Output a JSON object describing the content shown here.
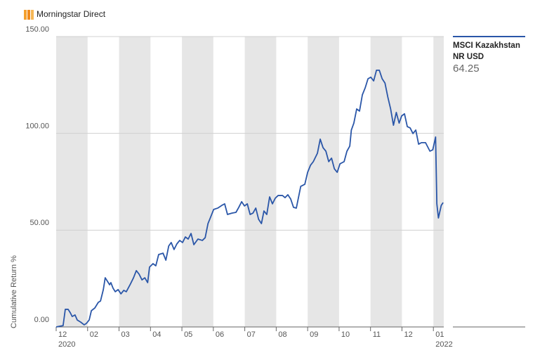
{
  "header": {
    "brand": "Morningstar Direct"
  },
  "chart_data": {
    "type": "line",
    "ylabel": "Cumulative Return %",
    "xlim": [
      0,
      12.33
    ],
    "xticks": [
      {
        "value": 0,
        "label": "12"
      },
      {
        "value": 1,
        "label": "02"
      },
      {
        "value": 2,
        "label": "03"
      },
      {
        "value": 3,
        "label": "04"
      },
      {
        "value": 4,
        "label": "05"
      },
      {
        "value": 5,
        "label": "06"
      },
      {
        "value": 6,
        "label": "07"
      },
      {
        "value": 7,
        "label": "08"
      },
      {
        "value": 8,
        "label": "09"
      },
      {
        "value": 9,
        "label": "10"
      },
      {
        "value": 10,
        "label": "11"
      },
      {
        "value": 11,
        "label": "12"
      },
      {
        "value": 12,
        "label": "01"
      }
    ],
    "year_labels": [
      {
        "value": 0,
        "label": "2020"
      },
      {
        "value": 12,
        "label": "2022"
      }
    ],
    "ylim": [
      0,
      150
    ],
    "yticks": [
      {
        "value": 0,
        "label": "0.00"
      },
      {
        "value": 50,
        "label": "50.00"
      },
      {
        "value": 100,
        "label": "100.00"
      },
      {
        "value": 150,
        "label": "150.00"
      }
    ],
    "grid": true,
    "band_color": "#e6e6e6",
    "series": [
      {
        "name": "MSCI Kazakhstan NR USD",
        "color": "#2a56a8",
        "x": [
          0,
          0.22,
          0.29,
          0.38,
          0.45,
          0.51,
          0.6,
          0.67,
          0.78,
          0.89,
          0.96,
          1.05,
          1.12,
          1.23,
          1.34,
          1.41,
          1.5,
          1.56,
          1.63,
          1.7,
          1.74,
          1.81,
          1.88,
          1.97,
          2.06,
          2.15,
          2.23,
          2.35,
          2.46,
          2.55,
          2.64,
          2.73,
          2.82,
          2.91,
          2.97,
          3.08,
          3.17,
          3.26,
          3.4,
          3.49,
          3.58,
          3.66,
          3.75,
          3.84,
          3.93,
          4.02,
          4.11,
          4.2,
          4.29,
          4.38,
          4.51,
          4.65,
          4.74,
          4.83,
          4.92,
          5.01,
          5.14,
          5.27,
          5.36,
          5.45,
          5.59,
          5.72,
          5.81,
          5.9,
          5.99,
          6.08,
          6.17,
          6.26,
          6.35,
          6.44,
          6.53,
          6.61,
          6.7,
          6.79,
          6.88,
          6.97,
          7.06,
          7.2,
          7.28,
          7.37,
          7.46,
          7.55,
          7.64,
          7.78,
          7.91,
          8.0,
          8.09,
          8.18,
          8.31,
          8.4,
          8.49,
          8.58,
          8.67,
          8.76,
          8.85,
          8.94,
          9.03,
          9.16,
          9.25,
          9.34,
          9.39,
          9.47,
          9.56,
          9.65,
          9.74,
          9.83,
          9.92,
          10.01,
          10.1,
          10.19,
          10.28,
          10.37,
          10.46,
          10.55,
          10.64,
          10.73,
          10.82,
          10.91,
          10.99,
          11.08,
          11.17,
          11.26,
          11.35,
          11.44,
          11.53,
          11.62,
          11.75,
          11.89,
          11.98,
          12.07,
          12.11,
          12.16,
          12.25,
          12.31
        ],
        "values": [
          0,
          0.7,
          9.1,
          9.1,
          7.3,
          5.4,
          6.2,
          3.6,
          2.5,
          1.1,
          1.8,
          3.6,
          8.4,
          9.8,
          12.7,
          13.4,
          19.3,
          25.4,
          23.6,
          21.8,
          22.9,
          20.0,
          18.2,
          19.3,
          17.1,
          18.9,
          18.2,
          21.8,
          25.4,
          29.1,
          27.2,
          24.3,
          25.4,
          22.9,
          30.9,
          32.7,
          31.6,
          37.4,
          38.1,
          34.5,
          41.8,
          43.6,
          40.0,
          42.9,
          44.7,
          43.6,
          46.5,
          45.4,
          48.3,
          42.5,
          45.4,
          44.7,
          46.1,
          53.4,
          57.0,
          60.7,
          61.4,
          62.8,
          63.6,
          58.1,
          58.8,
          59.2,
          61.8,
          64.7,
          62.5,
          63.6,
          58.1,
          58.8,
          61.4,
          55.6,
          53.4,
          59.9,
          58.1,
          67.2,
          63.6,
          66.5,
          67.9,
          67.9,
          66.8,
          68.3,
          66.1,
          61.8,
          61.4,
          72.6,
          73.7,
          79.9,
          83.5,
          85.4,
          89.7,
          97.0,
          92.6,
          90.8,
          85.4,
          87.2,
          81.7,
          79.9,
          84.3,
          85.4,
          90.8,
          93.4,
          101.7,
          105.3,
          112.6,
          111.5,
          119.9,
          123.5,
          128.2,
          129.0,
          127.1,
          132.6,
          132.6,
          128.2,
          126.0,
          118.8,
          112.6,
          104.2,
          110.8,
          105.3,
          109.0,
          110.1,
          103.5,
          102.8,
          99.9,
          101.7,
          94.4,
          95.2,
          95.2,
          90.8,
          91.5,
          98.1,
          63.6,
          56.3,
          62.8,
          64.25
        ]
      }
    ]
  }
}
